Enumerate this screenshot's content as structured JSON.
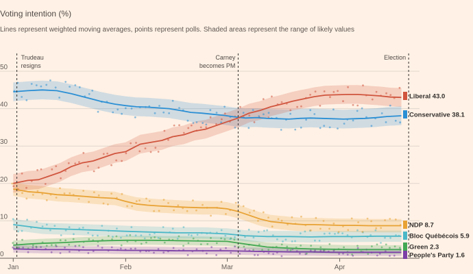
{
  "chart_data": {
    "type": "line",
    "title": "Voting intention (%)",
    "subtitle": "Lines represent weighted moving averages, points represent polls. Shaded areas represent the range of likely values",
    "xlabel": "",
    "ylabel": "",
    "x_ticks": [
      "Jan",
      "Feb",
      "Mar",
      "Apr"
    ],
    "x_tick_days": [
      0,
      31,
      59,
      90
    ],
    "x_range_days": [
      -1,
      112
    ],
    "y_ticks": [
      0,
      10,
      20,
      30,
      40,
      50
    ],
    "ylim": [
      0,
      50
    ],
    "grid": true,
    "legend": "right end labels",
    "annotations": [
      {
        "label_lines": [
          "Trudeau",
          "resigns"
        ],
        "day": 1
      },
      {
        "label_lines": [
          "Carney",
          "becomes PM"
        ],
        "day": 62
      },
      {
        "label_lines": [
          "Election"
        ],
        "day": 109
      }
    ],
    "series": [
      {
        "name": "Liberal",
        "end_label": "Liberal 43.0",
        "color": "#d0553e",
        "band_width": 2.5,
        "x": [
          0,
          4,
          7,
          10,
          13,
          16,
          19,
          22,
          25,
          28,
          31,
          33,
          35,
          38,
          41,
          44,
          47,
          50,
          53,
          56,
          59,
          62,
          65,
          68,
          71,
          74,
          77,
          80,
          83,
          86,
          89,
          92,
          95,
          98,
          101,
          104,
          107
        ],
        "values": [
          20.0,
          20.8,
          21.0,
          22.0,
          23.0,
          24.5,
          25.5,
          26.0,
          27.0,
          28.0,
          28.5,
          29.5,
          30.5,
          31.0,
          31.5,
          32.5,
          33.0,
          34.0,
          34.5,
          35.5,
          36.5,
          37.5,
          38.8,
          39.5,
          40.5,
          41.2,
          42.0,
          42.6,
          43.2,
          43.6,
          43.7,
          43.8,
          43.8,
          43.6,
          43.4,
          43.1,
          43.0
        ]
      },
      {
        "name": "Conservative",
        "end_label": "Conservative 38.1",
        "color": "#2b8fd4",
        "band_width": 2.5,
        "x": [
          0,
          4,
          8,
          12,
          16,
          20,
          24,
          28,
          31,
          34,
          37,
          40,
          43,
          46,
          49,
          52,
          55,
          58,
          61,
          64,
          67,
          70,
          73,
          76,
          79,
          82,
          85,
          88,
          91,
          94,
          97,
          100,
          103,
          107
        ],
        "values": [
          44.5,
          44.8,
          45.0,
          44.8,
          44.0,
          43.0,
          42.0,
          41.2,
          40.8,
          40.5,
          40.4,
          40.2,
          40.0,
          39.5,
          39.0,
          38.8,
          38.5,
          38.2,
          37.8,
          37.5,
          37.6,
          37.4,
          37.3,
          37.2,
          37.4,
          37.5,
          37.4,
          37.3,
          37.2,
          37.3,
          37.4,
          37.6,
          37.9,
          38.1
        ]
      },
      {
        "name": "NDP",
        "end_label": "NDP 8.7",
        "color": "#e8a234",
        "band_width": 1.8,
        "x": [
          0,
          4,
          8,
          12,
          16,
          20,
          24,
          28,
          31,
          34,
          37,
          40,
          44,
          48,
          52,
          56,
          59,
          62,
          65,
          68,
          71,
          74,
          77,
          80,
          83,
          86,
          90,
          94,
          98,
          102,
          107
        ],
        "values": [
          18.5,
          17.8,
          17.5,
          17.0,
          16.8,
          16.5,
          16.2,
          16.0,
          15.2,
          14.5,
          14.2,
          14.0,
          13.8,
          13.6,
          13.5,
          13.5,
          13.2,
          12.5,
          11.5,
          10.5,
          9.8,
          9.5,
          9.2,
          9.0,
          9.0,
          8.9,
          8.8,
          8.8,
          8.7,
          8.7,
          8.7
        ]
      },
      {
        "name": "Bloc Québécois",
        "end_label": "Bloc Québécois 5.9",
        "color": "#4cb8c7",
        "band_width": 1.5,
        "x": [
          0,
          4,
          8,
          14,
          20,
          26,
          31,
          38,
          45,
          52,
          59,
          64,
          70,
          76,
          82,
          88,
          94,
          100,
          107
        ],
        "values": [
          9.0,
          8.5,
          8.0,
          7.8,
          7.6,
          7.4,
          7.2,
          7.0,
          6.8,
          6.8,
          6.5,
          6.0,
          5.8,
          5.8,
          5.7,
          5.8,
          5.8,
          5.9,
          5.9
        ]
      },
      {
        "name": "Green",
        "end_label": "Green 2.3",
        "color": "#43a853",
        "band_width": 1.2,
        "x": [
          0,
          4,
          8,
          14,
          20,
          26,
          31,
          38,
          45,
          52,
          59,
          64,
          70,
          76,
          82,
          88,
          94,
          100,
          107
        ],
        "values": [
          3.5,
          3.8,
          4.0,
          4.2,
          4.5,
          4.7,
          4.8,
          4.8,
          4.7,
          4.6,
          4.5,
          3.8,
          3.0,
          2.7,
          2.5,
          2.4,
          2.3,
          2.3,
          2.3
        ]
      },
      {
        "name": "People's Party",
        "end_label": "People's Party 1.6",
        "color": "#7b3fa6",
        "band_width": 1.0,
        "x": [
          0,
          4,
          8,
          14,
          20,
          26,
          31,
          38,
          45,
          52,
          59,
          64,
          70,
          76,
          82,
          88,
          94,
          100,
          107
        ],
        "values": [
          2.5,
          2.4,
          2.3,
          2.3,
          2.2,
          2.2,
          2.1,
          2.1,
          2.0,
          2.0,
          2.0,
          1.9,
          1.8,
          1.7,
          1.7,
          1.6,
          1.6,
          1.6,
          1.6
        ]
      }
    ]
  }
}
